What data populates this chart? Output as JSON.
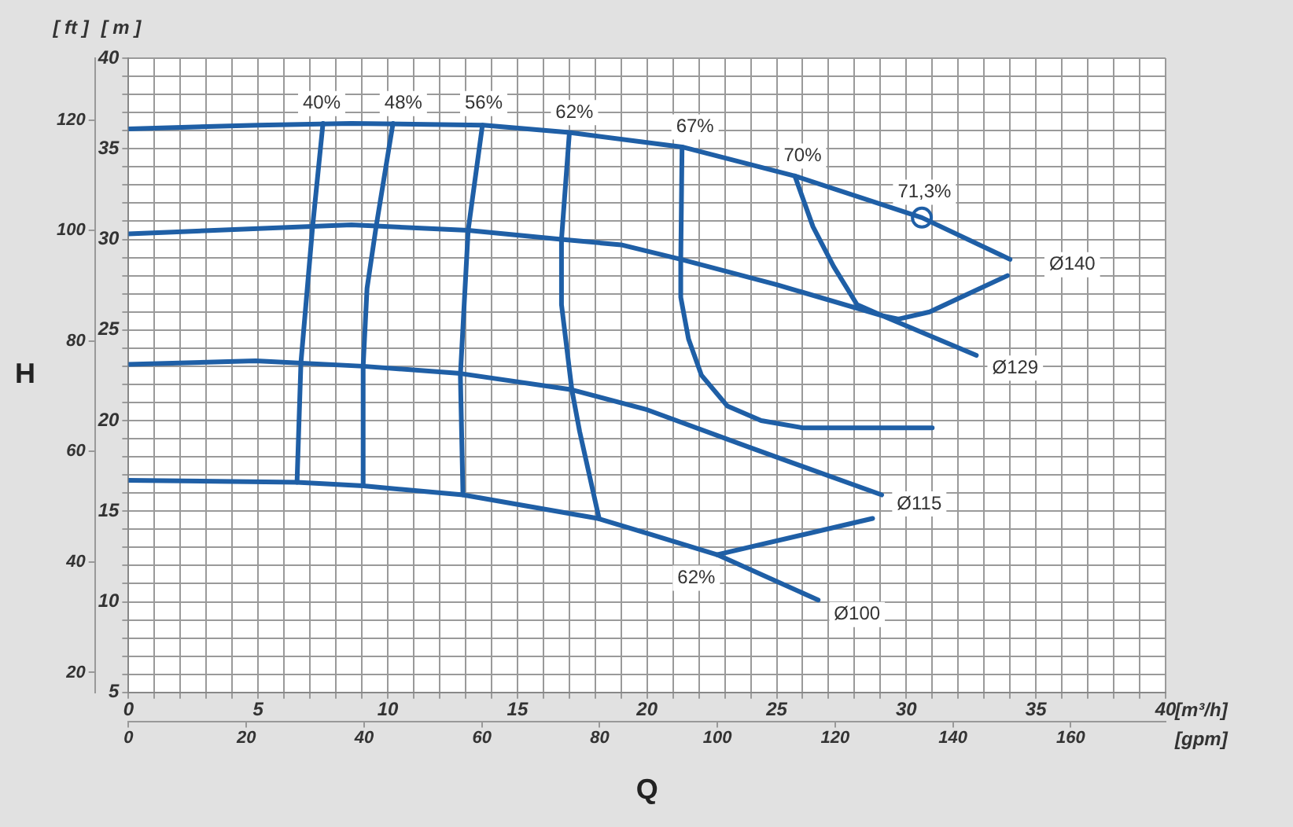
{
  "chart_data": {
    "type": "line",
    "xlabel": "[m³/h]",
    "x2label": "[gpm]",
    "ylabel": "[ m ]",
    "y2label": "[ ft ]",
    "xlim": [
      0,
      40
    ],
    "xticks": [
      0,
      {
        "value": 1,
        "label": null
      },
      {
        "value": 2,
        "label": null
      },
      {
        "value": 3,
        "label": null
      },
      {
        "value": 4,
        "label": null
      },
      5,
      {
        "value": 6,
        "label": null
      },
      {
        "value": 7,
        "label": null
      },
      {
        "value": 8,
        "label": null
      },
      {
        "value": 9,
        "label": null
      },
      10,
      {
        "value": 11,
        "label": null
      },
      {
        "value": 12,
        "label": null
      },
      {
        "value": 13,
        "label": null
      },
      {
        "value": 14,
        "label": null
      },
      15,
      {
        "value": 16,
        "label": null
      },
      {
        "value": 17,
        "label": null
      },
      {
        "value": 18,
        "label": null
      },
      {
        "value": 19,
        "label": null
      },
      20,
      {
        "value": 21,
        "label": null
      },
      {
        "value": 22,
        "label": null
      },
      {
        "value": 23,
        "label": null
      },
      {
        "value": 24,
        "label": null
      },
      25,
      {
        "value": 26,
        "label": null
      },
      {
        "value": 27,
        "label": null
      },
      {
        "value": 28,
        "label": null
      },
      {
        "value": 29,
        "label": null
      },
      30,
      {
        "value": 31,
        "label": null
      },
      {
        "value": 32,
        "label": null
      },
      {
        "value": 33,
        "label": null
      },
      {
        "value": 34,
        "label": null
      },
      35,
      {
        "value": 36,
        "label": null
      },
      {
        "value": 37,
        "label": null
      },
      {
        "value": 38,
        "label": null
      },
      {
        "value": 39,
        "label": null
      },
      40
    ],
    "x2lim": [
      0,
      176.1
    ],
    "x2ticks": [
      0,
      20,
      40,
      60,
      80,
      100,
      120,
      140,
      160
    ],
    "ylim": [
      5,
      40
    ],
    "yticks": [
      5,
      {
        "value": 6,
        "label": null
      },
      {
        "value": 7,
        "label": null
      },
      {
        "value": 8,
        "label": null
      },
      {
        "value": 9,
        "label": null
      },
      10,
      {
        "value": 11,
        "label": null
      },
      {
        "value": 12,
        "label": null
      },
      {
        "value": 13,
        "label": null
      },
      {
        "value": 14,
        "label": null
      },
      15,
      {
        "value": 16,
        "label": null
      },
      {
        "value": 17,
        "label": null
      },
      {
        "value": 18,
        "label": null
      },
      {
        "value": 19,
        "label": null
      },
      20,
      {
        "value": 21,
        "label": null
      },
      {
        "value": 22,
        "label": null
      },
      {
        "value": 23,
        "label": null
      },
      {
        "value": 24,
        "label": null
      },
      25,
      {
        "value": 26,
        "label": null
      },
      {
        "value": 27,
        "label": null
      },
      {
        "value": 28,
        "label": null
      },
      {
        "value": 29,
        "label": null
      },
      30,
      {
        "value": 31,
        "label": null
      },
      {
        "value": 32,
        "label": null
      },
      {
        "value": 33,
        "label": null
      },
      {
        "value": 34,
        "label": null
      },
      35,
      {
        "value": 36,
        "label": null
      },
      {
        "value": 37,
        "label": null
      },
      {
        "value": 38,
        "label": null
      },
      {
        "value": 39,
        "label": null
      },
      40
    ],
    "y2lim": [
      16.4,
      131.2
    ],
    "y2ticks": [
      20,
      40,
      60,
      80,
      100,
      120
    ],
    "grid": true,
    "legend": false,
    "marker": "none",
    "line_style": "solid",
    "series": [
      {
        "color": "#1f5fa6",
        "x": [
          0,
          5,
          8.6,
          13.7,
          17,
          21.35,
          25.7,
          30.6,
          34
        ],
        "values": [
          36.1,
          36.3,
          36.4,
          36.3,
          35.9,
          35.1,
          33.5,
          31.2,
          28.9
        ]
      },
      {
        "color": "#1f5fa6",
        "x": [
          0,
          5,
          8.6,
          13.1,
          16.7,
          19,
          21.3,
          25,
          29.05,
          32.7
        ],
        "values": [
          30.3,
          30.6,
          30.8,
          30.5,
          30.0,
          29.7,
          28.9,
          27.5,
          25.8,
          23.6
        ]
      },
      {
        "color": "#1f5fa6",
        "x": [
          0,
          4.9,
          9.05,
          12.8,
          17.1,
          20,
          24,
          29.05
        ],
        "values": [
          23.1,
          23.3,
          23.0,
          22.6,
          21.7,
          20.6,
          18.5,
          15.9
        ]
      },
      {
        "color": "#1f5fa6",
        "x": [
          0,
          6.5,
          9.05,
          12.9,
          18.1,
          20.2,
          22.7,
          26.6
        ],
        "values": [
          16.7,
          16.6,
          16.4,
          15.9,
          14.6,
          13.7,
          12.6,
          10.1
        ]
      },
      {
        "color": "#1f5fa6",
        "x": [
          7.5,
          7.1,
          6.65,
          6.5
        ],
        "values": [
          36.4,
          30.7,
          23.2,
          16.6
        ]
      },
      {
        "color": "#1f5fa6",
        "x": [
          10.2,
          9.55,
          9.2,
          9.05,
          9.05
        ],
        "values": [
          36.4,
          30.7,
          27.3,
          23.0,
          16.4
        ]
      },
      {
        "color": "#1f5fa6",
        "x": [
          13.65,
          13.1,
          12.8,
          12.9
        ],
        "values": [
          36.3,
          30.5,
          22.5,
          15.9
        ]
      },
      {
        "color": "#1f5fa6",
        "x": [
          17.0,
          16.7,
          16.7,
          17.1,
          17.4,
          18.15
        ],
        "values": [
          35.8,
          30.0,
          26.4,
          21.7,
          19.4,
          14.6
        ]
      },
      {
        "color": "#1f5fa6",
        "x": [
          21.35,
          21.3,
          21.3,
          21.6,
          22.1,
          23.1,
          24.4,
          26.0,
          31.0
        ],
        "values": [
          35.1,
          28.9,
          26.8,
          24.5,
          22.5,
          20.8,
          20.0,
          19.6,
          19.6
        ]
      },
      {
        "color": "#1f5fa6",
        "x": [
          25.7,
          26.4,
          27.2,
          28.1,
          29.05,
          29.7,
          30.9,
          32.1,
          33.9
        ],
        "values": [
          33.5,
          30.7,
          28.5,
          26.4,
          25.8,
          25.6,
          26.0,
          26.8,
          28.0
        ]
      },
      {
        "color": "#1f5fa6",
        "x": [
          22.7,
          28.7
        ],
        "values": [
          12.6,
          14.6
        ]
      },
      {
        "type": "scatter",
        "marker": "circle",
        "color": "#1f5fa6",
        "x": [
          30.6
        ],
        "values": [
          31.2
        ]
      }
    ],
    "annotations": [
      "H",
      "Q",
      {
        "text": "40%",
        "x": 7.45,
        "y": 37.5
      },
      {
        "text": "48%",
        "x": 10.6,
        "y": 37.5
      },
      {
        "text": "56%",
        "x": 13.7,
        "y": 37.5
      },
      {
        "text": "62%",
        "x": 17.2,
        "y": 37.0
      },
      {
        "text": "67%",
        "x": 21.85,
        "y": 36.2
      },
      {
        "text": "70%",
        "x": 26.0,
        "y": 34.6
      },
      {
        "text": "71,3%",
        "x": 30.7,
        "y": 32.6
      },
      {
        "text": "Ø140",
        "x": 36.4,
        "y": 28.6
      },
      {
        "text": "Ø129",
        "x": 34.2,
        "y": 22.9
      },
      {
        "text": "Ø115",
        "x": 30.5,
        "y": 15.4
      },
      {
        "text": "62%",
        "x": 21.9,
        "y": 11.3
      },
      {
        "text": "Ø100",
        "x": 28.1,
        "y": 9.3
      }
    ]
  }
}
